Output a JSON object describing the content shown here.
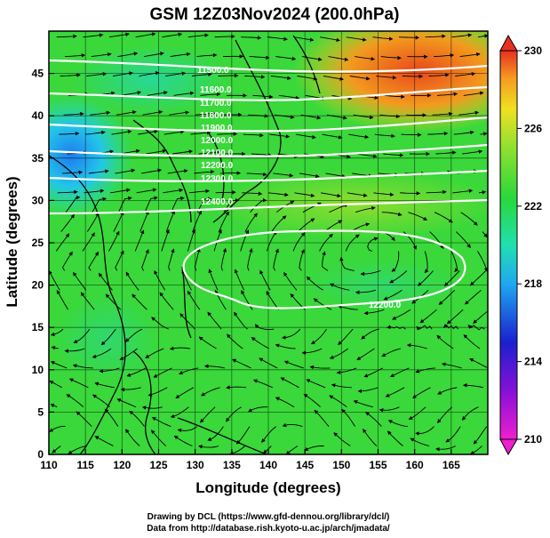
{
  "chart_data": {
    "type": "map",
    "title": "GSM 12Z03Nov2024 (200.0hPa)",
    "xlabel": "Longitude (degrees)",
    "ylabel": "Latitude  (degrees)",
    "xlim": [
      110,
      170
    ],
    "ylim": [
      0,
      50
    ],
    "x_ticks": [
      "110",
      "115",
      "120",
      "125",
      "130",
      "135",
      "140",
      "145",
      "150",
      "155",
      "160",
      "165"
    ],
    "y_ticks": [
      "0",
      "5",
      "10",
      "15",
      "20",
      "25",
      "30",
      "35",
      "40",
      "45"
    ],
    "colorbar": {
      "ticks": [
        "210",
        "214",
        "218",
        "222",
        "226",
        "230"
      ],
      "range": [
        210,
        230
      ]
    },
    "fields": "temperature shading (K), streamlines, white geopotential height contours",
    "contour_labels": [
      "11500.0",
      "11600.0",
      "11700.0",
      "11800.0",
      "11900.0",
      "12000.0",
      "12100.0",
      "12200.0",
      "12300.0",
      "12400.0",
      "12200.0"
    ],
    "grid": true
  },
  "credits": {
    "line1": "Drawing by DCL (https://www.gfd-dennou.org/library/dcl/)",
    "line2": "Data from http://database.rish.kyoto-u.ac.jp/arch/jmadata/"
  }
}
